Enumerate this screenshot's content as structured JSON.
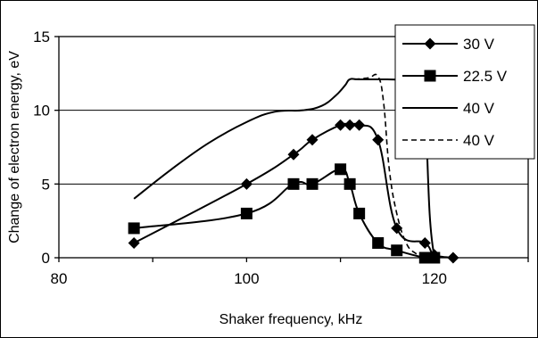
{
  "chart_data": {
    "type": "line",
    "title": "",
    "xlabel": "Shaker frequency,   kHz",
    "ylabel": "Change of electron energy,  eV",
    "xlim": [
      80,
      130
    ],
    "ylim": [
      0,
      15
    ],
    "x_ticks": [
      80,
      100,
      120
    ],
    "y_ticks": [
      0,
      5,
      10,
      15
    ],
    "x_tick_labels": [
      "80",
      "100",
      "120"
    ],
    "y_tick_labels": [
      "0",
      "5",
      "10",
      "15"
    ],
    "grid": "horizontal",
    "legend_position": "top-right",
    "series": [
      {
        "name": "30 V",
        "marker": "diamond",
        "line": "solid",
        "color": "#000000",
        "x": [
          88,
          100,
          105,
          107,
          110,
          111,
          112,
          114,
          116,
          119,
          120,
          122
        ],
        "y": [
          1,
          5,
          7,
          8,
          9,
          9,
          9,
          8,
          2,
          1,
          0.2,
          0
        ]
      },
      {
        "name": "22.5 V",
        "marker": "square",
        "line": "solid",
        "color": "#000000",
        "x": [
          88,
          100,
          105,
          107,
          110,
          111,
          112,
          114,
          116,
          119,
          120
        ],
        "y": [
          2,
          3,
          5,
          5,
          6,
          5,
          3,
          1,
          0.5,
          0,
          0
        ]
      },
      {
        "name": "40 V",
        "marker": "none",
        "line": "solid",
        "color": "#000000",
        "x": [
          88,
          92,
          96,
          100,
          103,
          106,
          108,
          109.5,
          110.5,
          111,
          112,
          115,
          117,
          118,
          118.5,
          119,
          119.5,
          120
        ],
        "y": [
          4,
          6,
          7.8,
          9.2,
          9.9,
          10,
          10.3,
          11,
          11.7,
          12.1,
          12.1,
          12.1,
          12.1,
          12.4,
          12.3,
          10.5,
          3,
          0
        ]
      },
      {
        "name": "40 V",
        "marker": "none",
        "line": "dashed",
        "color": "#000000",
        "x": [
          111.5,
          113,
          114,
          114.6,
          115.2,
          116,
          117,
          118,
          119
        ],
        "y": [
          12.1,
          12.2,
          12.3,
          10.5,
          6,
          3,
          1,
          0.3,
          0
        ]
      }
    ]
  }
}
